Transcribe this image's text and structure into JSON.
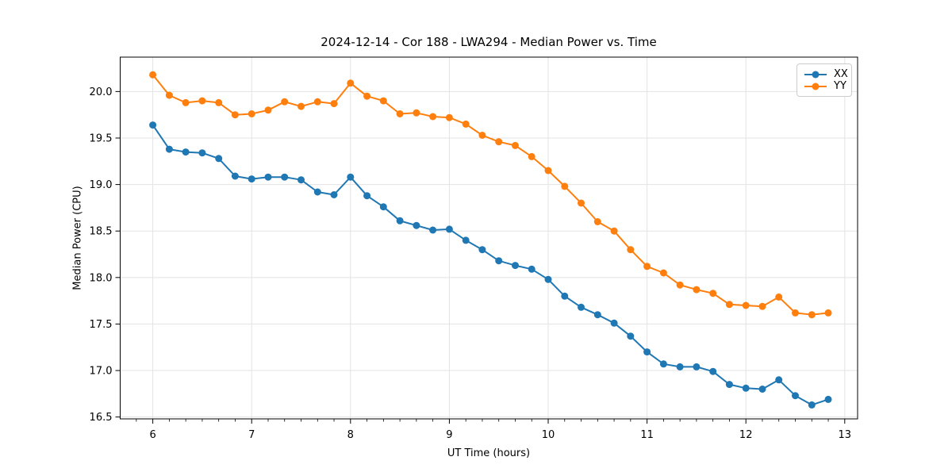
{
  "chart_data": {
    "type": "line",
    "title": "2024-12-14 - Cor 188 - LWA294 - Median Power vs. Time",
    "xlabel": "UT Time (hours)",
    "ylabel": "Median Power (CPU)",
    "xlim": [
      5.67,
      13.13
    ],
    "ylim": [
      16.48,
      20.37
    ],
    "x_ticks": [
      6,
      7,
      8,
      9,
      10,
      11,
      12,
      13
    ],
    "y_ticks": [
      16.5,
      17.0,
      17.5,
      18.0,
      18.5,
      19.0,
      19.5,
      20.0
    ],
    "x_minor_tick_step_hours": 0.1667,
    "grid": "major-only",
    "legend_position": "upper-right",
    "x": [
      6.0,
      6.167,
      6.333,
      6.5,
      6.667,
      6.833,
      7.0,
      7.167,
      7.333,
      7.5,
      7.667,
      7.833,
      8.0,
      8.167,
      8.333,
      8.5,
      8.667,
      8.833,
      9.0,
      9.167,
      9.333,
      9.5,
      9.667,
      9.833,
      10.0,
      10.167,
      10.333,
      10.5,
      10.667,
      10.833,
      11.0,
      11.167,
      11.333,
      11.5,
      11.667,
      11.833,
      12.0,
      12.167,
      12.333,
      12.5,
      12.667,
      12.833
    ],
    "series": [
      {
        "name": "XX",
        "color": "#1f77b4",
        "values": [
          19.64,
          19.38,
          19.35,
          19.34,
          19.28,
          19.09,
          19.06,
          19.08,
          19.08,
          19.05,
          18.92,
          18.89,
          19.08,
          18.88,
          18.76,
          18.61,
          18.56,
          18.51,
          18.52,
          18.4,
          18.3,
          18.18,
          18.13,
          18.09,
          17.98,
          17.8,
          17.68,
          17.6,
          17.51,
          17.37,
          17.2,
          17.07,
          17.04,
          17.04,
          16.99,
          16.85,
          16.81,
          16.8,
          16.9,
          16.73,
          16.63,
          16.69
        ]
      },
      {
        "name": "YY",
        "color": "#ff7f0e",
        "values": [
          20.18,
          19.96,
          19.88,
          19.9,
          19.88,
          19.75,
          19.76,
          19.8,
          19.89,
          19.84,
          19.89,
          19.87,
          20.09,
          19.95,
          19.9,
          19.76,
          19.77,
          19.73,
          19.72,
          19.65,
          19.53,
          19.46,
          19.42,
          19.3,
          19.15,
          18.98,
          18.8,
          18.6,
          18.5,
          18.3,
          18.12,
          18.05,
          17.92,
          17.87,
          17.83,
          17.71,
          17.7,
          17.69,
          17.79,
          17.62,
          17.6,
          17.62
        ]
      }
    ],
    "colors": {
      "grid": "#e3e3e3",
      "spine": "#000000",
      "background": "#ffffff"
    }
  }
}
